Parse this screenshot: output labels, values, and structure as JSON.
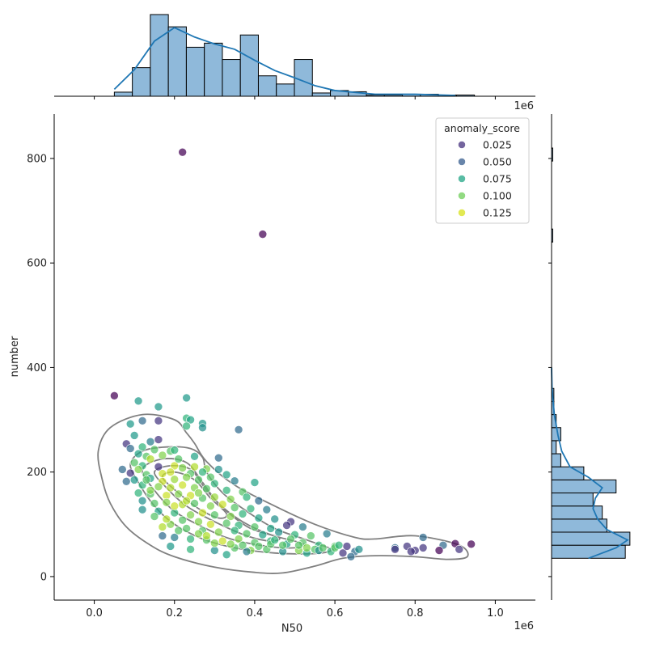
{
  "chart_data": {
    "type": "scatter",
    "xlabel": "N50",
    "ylabel": "number",
    "x_offset_label": "1e6",
    "top_offset_label": "1e6",
    "xlim": [
      -0.1,
      1.1
    ],
    "ylim": [
      -45,
      885
    ],
    "x_ticks": [
      0.0,
      0.2,
      0.4,
      0.6,
      0.8,
      1.0
    ],
    "x_tick_labels": [
      "0.0",
      "0.2",
      "0.4",
      "0.6",
      "0.8",
      "1.0"
    ],
    "y_ticks": [
      0,
      200,
      400,
      600,
      800
    ],
    "y_tick_labels": [
      "0",
      "200",
      "400",
      "600",
      "800"
    ],
    "legend": {
      "title": "anomaly_score",
      "placement": "upper right",
      "entries": [
        {
          "label": "0.025",
          "color": "#46327e"
        },
        {
          "label": "0.050",
          "color": "#365c8d"
        },
        {
          "label": "0.075",
          "color": "#21a585"
        },
        {
          "label": "0.100",
          "color": "#6ece58"
        },
        {
          "label": "0.125",
          "color": "#d8e219"
        }
      ]
    },
    "colors": {
      "histogram_fill": "#8fb9da",
      "kde_line": "#1f77b4",
      "contour": "#808080",
      "viridis_low": "#440154",
      "viridis_high": "#fde725"
    },
    "top_histogram": {
      "bin_start": 0.05,
      "bin_width": 0.0449,
      "counts": [
        1,
        7,
        20,
        17,
        12,
        13,
        9,
        15,
        5,
        3,
        9,
        0.8,
        1.4,
        1.1,
        0.3,
        0.3,
        0.5,
        0.5,
        0.3,
        0.3
      ],
      "kde": [
        [
          0.05,
          1.7
        ],
        [
          0.1,
          6.5
        ],
        [
          0.15,
          13.5
        ],
        [
          0.2,
          16.8
        ],
        [
          0.25,
          14.5
        ],
        [
          0.3,
          12.8
        ],
        [
          0.35,
          11.5
        ],
        [
          0.4,
          8.8
        ],
        [
          0.45,
          6.3
        ],
        [
          0.5,
          4.5
        ],
        [
          0.55,
          2.6
        ],
        [
          0.6,
          1.4
        ],
        [
          0.7,
          0.5
        ],
        [
          0.8,
          0.5
        ],
        [
          0.9,
          0.2
        ]
      ]
    },
    "right_histogram": {
      "bins": [
        [
          35,
          60,
          16
        ],
        [
          60,
          85,
          17
        ],
        [
          85,
          110,
          12
        ],
        [
          110,
          135,
          11
        ],
        [
          135,
          160,
          9
        ],
        [
          160,
          185,
          14
        ],
        [
          185,
          210,
          7
        ],
        [
          210,
          235,
          2
        ],
        [
          235,
          260,
          1
        ],
        [
          260,
          285,
          2
        ],
        [
          285,
          310,
          1
        ],
        [
          310,
          335,
          0.5
        ],
        [
          335,
          360,
          0.5
        ],
        [
          640,
          665,
          0.25
        ],
        [
          795,
          820,
          0.25
        ]
      ],
      "kde": [
        [
          35,
          8
        ],
        [
          55,
          14
        ],
        [
          70,
          16.5
        ],
        [
          90,
          12
        ],
        [
          110,
          10
        ],
        [
          130,
          9
        ],
        [
          150,
          9.5
        ],
        [
          170,
          11
        ],
        [
          190,
          8
        ],
        [
          210,
          4
        ],
        [
          240,
          2.2
        ],
        [
          270,
          1.4
        ],
        [
          310,
          0.6
        ],
        [
          360,
          0.1
        ],
        [
          400,
          0
        ]
      ]
    },
    "contours": [
      {
        "points": [
          [
            0.02,
            185
          ],
          [
            0.04,
            140
          ],
          [
            0.08,
            95
          ],
          [
            0.14,
            60
          ],
          [
            0.2,
            38
          ],
          [
            0.3,
            18
          ],
          [
            0.4,
            8
          ],
          [
            0.47,
            7
          ],
          [
            0.55,
            20
          ],
          [
            0.62,
            35
          ],
          [
            0.7,
            40
          ],
          [
            0.8,
            38
          ],
          [
            0.88,
            33
          ],
          [
            0.93,
            38
          ],
          [
            0.91,
            60
          ],
          [
            0.8,
            78
          ],
          [
            0.7,
            72
          ],
          [
            0.65,
            75
          ],
          [
            0.55,
            100
          ],
          [
            0.45,
            135
          ],
          [
            0.35,
            175
          ],
          [
            0.28,
            220
          ],
          [
            0.25,
            255
          ],
          [
            0.23,
            275
          ],
          [
            0.2,
            300
          ],
          [
            0.12,
            310
          ],
          [
            0.04,
            285
          ],
          [
            0.01,
            240
          ]
        ]
      },
      {
        "points": [
          [
            0.09,
            215
          ],
          [
            0.11,
            180
          ],
          [
            0.15,
            135
          ],
          [
            0.2,
            100
          ],
          [
            0.27,
            72
          ],
          [
            0.35,
            55
          ],
          [
            0.45,
            45
          ],
          [
            0.55,
            44
          ],
          [
            0.59,
            52
          ],
          [
            0.53,
            70
          ],
          [
            0.45,
            92
          ],
          [
            0.38,
            125
          ],
          [
            0.32,
            160
          ],
          [
            0.28,
            200
          ],
          [
            0.27,
            228
          ],
          [
            0.24,
            245
          ],
          [
            0.18,
            248
          ],
          [
            0.12,
            240
          ]
        ]
      },
      {
        "points": [
          [
            0.12,
            205
          ],
          [
            0.15,
            165
          ],
          [
            0.2,
            125
          ],
          [
            0.27,
            95
          ],
          [
            0.34,
            72
          ],
          [
            0.43,
            58
          ],
          [
            0.5,
            55
          ],
          [
            0.52,
            63
          ],
          [
            0.44,
            80
          ],
          [
            0.37,
            105
          ],
          [
            0.31,
            140
          ],
          [
            0.27,
            180
          ],
          [
            0.23,
            218
          ],
          [
            0.17,
            225
          ]
        ]
      },
      {
        "points": [
          [
            0.15,
            200
          ],
          [
            0.18,
            170
          ],
          [
            0.23,
            135
          ],
          [
            0.3,
            105
          ],
          [
            0.38,
            78
          ],
          [
            0.44,
            68
          ],
          [
            0.46,
            75
          ],
          [
            0.39,
            92
          ],
          [
            0.33,
            125
          ],
          [
            0.28,
            165
          ],
          [
            0.24,
            205
          ],
          [
            0.19,
            212
          ]
        ]
      },
      {
        "points": [
          [
            0.17,
            190
          ],
          [
            0.21,
            160
          ],
          [
            0.26,
            130
          ],
          [
            0.31,
            112
          ],
          [
            0.33,
            120
          ],
          [
            0.29,
            150
          ],
          [
            0.25,
            185
          ],
          [
            0.2,
            200
          ]
        ]
      }
    ],
    "points": [
      [
        0.22,
        812,
        0.005
      ],
      [
        0.42,
        655,
        0.005
      ],
      [
        0.05,
        346,
        0.005
      ],
      [
        0.23,
        342,
        0.075
      ],
      [
        0.11,
        336,
        0.075
      ],
      [
        0.16,
        325,
        0.075
      ],
      [
        0.16,
        298,
        0.025
      ],
      [
        0.12,
        298,
        0.05
      ],
      [
        0.09,
        292,
        0.075
      ],
      [
        0.23,
        303,
        0.09
      ],
      [
        0.24,
        300,
        0.08
      ],
      [
        0.27,
        293,
        0.075
      ],
      [
        0.27,
        285,
        0.07
      ],
      [
        0.36,
        281,
        0.05
      ],
      [
        0.23,
        288,
        0.09
      ],
      [
        0.1,
        270,
        0.075
      ],
      [
        0.14,
        258,
        0.06
      ],
      [
        0.16,
        262,
        0.025
      ],
      [
        0.08,
        254,
        0.025
      ],
      [
        0.09,
        245,
        0.05
      ],
      [
        0.12,
        248,
        0.09
      ],
      [
        0.15,
        243,
        0.1
      ],
      [
        0.19,
        240,
        0.1
      ],
      [
        0.2,
        242,
        0.09
      ],
      [
        0.11,
        235,
        0.08
      ],
      [
        0.13,
        230,
        0.1
      ],
      [
        0.14,
        225,
        0.12
      ],
      [
        0.17,
        232,
        0.11
      ],
      [
        0.31,
        227,
        0.05
      ],
      [
        0.1,
        218,
        0.1
      ],
      [
        0.12,
        212,
        0.09
      ],
      [
        0.16,
        210,
        0.025
      ],
      [
        0.2,
        212,
        0.125
      ],
      [
        0.22,
        208,
        0.11
      ],
      [
        0.25,
        210,
        0.12
      ],
      [
        0.28,
        206,
        0.11
      ],
      [
        0.07,
        205,
        0.05
      ],
      [
        0.09,
        198,
        0.025
      ],
      [
        0.13,
        195,
        0.1
      ],
      [
        0.17,
        197,
        0.125
      ],
      [
        0.19,
        200,
        0.125
      ],
      [
        0.24,
        197,
        0.1
      ],
      [
        0.27,
        200,
        0.09
      ],
      [
        0.31,
        205,
        0.07
      ],
      [
        0.08,
        182,
        0.05
      ],
      [
        0.1,
        185,
        0.075
      ],
      [
        0.14,
        188,
        0.08
      ],
      [
        0.17,
        182,
        0.125
      ],
      [
        0.2,
        186,
        0.115
      ],
      [
        0.23,
        190,
        0.11
      ],
      [
        0.26,
        185,
        0.1
      ],
      [
        0.3,
        178,
        0.09
      ],
      [
        0.35,
        183,
        0.06
      ],
      [
        0.4,
        180,
        0.08
      ],
      [
        0.12,
        175,
        0.09
      ],
      [
        0.16,
        172,
        0.11
      ],
      [
        0.19,
        170,
        0.12
      ],
      [
        0.22,
        175,
        0.125
      ],
      [
        0.25,
        170,
        0.11
      ],
      [
        0.28,
        168,
        0.1
      ],
      [
        0.33,
        165,
        0.09
      ],
      [
        0.37,
        162,
        0.1
      ],
      [
        0.11,
        160,
        0.09
      ],
      [
        0.14,
        158,
        0.1
      ],
      [
        0.18,
        155,
        0.125
      ],
      [
        0.21,
        158,
        0.11
      ],
      [
        0.24,
        155,
        0.125
      ],
      [
        0.27,
        150,
        0.1
      ],
      [
        0.3,
        152,
        0.115
      ],
      [
        0.34,
        148,
        0.11
      ],
      [
        0.38,
        152,
        0.09
      ],
      [
        0.41,
        145,
        0.05
      ],
      [
        0.12,
        145,
        0.07
      ],
      [
        0.15,
        140,
        0.1
      ],
      [
        0.18,
        142,
        0.11
      ],
      [
        0.22,
        138,
        0.12
      ],
      [
        0.25,
        140,
        0.1
      ],
      [
        0.29,
        135,
        0.11
      ],
      [
        0.32,
        138,
        0.125
      ],
      [
        0.35,
        132,
        0.1
      ],
      [
        0.39,
        130,
        0.09
      ],
      [
        0.43,
        128,
        0.06
      ],
      [
        0.12,
        128,
        0.07
      ],
      [
        0.16,
        125,
        0.08
      ],
      [
        0.2,
        122,
        0.09
      ],
      [
        0.24,
        118,
        0.11
      ],
      [
        0.27,
        122,
        0.125
      ],
      [
        0.3,
        118,
        0.1
      ],
      [
        0.34,
        115,
        0.11
      ],
      [
        0.37,
        120,
        0.09
      ],
      [
        0.41,
        112,
        0.08
      ],
      [
        0.45,
        110,
        0.07
      ],
      [
        0.49,
        105,
        0.025
      ],
      [
        0.22,
        108,
        0.1
      ],
      [
        0.26,
        105,
        0.11
      ],
      [
        0.29,
        100,
        0.125
      ],
      [
        0.33,
        102,
        0.1
      ],
      [
        0.36,
        98,
        0.09
      ],
      [
        0.4,
        95,
        0.1
      ],
      [
        0.44,
        92,
        0.08
      ],
      [
        0.48,
        98,
        0.025
      ],
      [
        0.52,
        95,
        0.06
      ],
      [
        0.17,
        95,
        0.12
      ],
      [
        0.23,
        92,
        0.1
      ],
      [
        0.27,
        88,
        0.1
      ],
      [
        0.31,
        85,
        0.11
      ],
      [
        0.35,
        88,
        0.09
      ],
      [
        0.38,
        82,
        0.1
      ],
      [
        0.42,
        80,
        0.08
      ],
      [
        0.46,
        85,
        0.07
      ],
      [
        0.5,
        80,
        0.09
      ],
      [
        0.54,
        78,
        0.1
      ],
      [
        0.58,
        82,
        0.06
      ],
      [
        0.17,
        78,
        0.05
      ],
      [
        0.2,
        75,
        0.06
      ],
      [
        0.24,
        72,
        0.09
      ],
      [
        0.28,
        70,
        0.1
      ],
      [
        0.32,
        68,
        0.125
      ],
      [
        0.36,
        72,
        0.11
      ],
      [
        0.4,
        65,
        0.1
      ],
      [
        0.44,
        68,
        0.09
      ],
      [
        0.48,
        62,
        0.08
      ],
      [
        0.52,
        65,
        0.1
      ],
      [
        0.56,
        60,
        0.09
      ],
      [
        0.6,
        58,
        0.1
      ],
      [
        0.19,
        58,
        0.075
      ],
      [
        0.24,
        52,
        0.09
      ],
      [
        0.3,
        50,
        0.07
      ],
      [
        0.35,
        55,
        0.1
      ],
      [
        0.39,
        50,
        0.11
      ],
      [
        0.43,
        52,
        0.1
      ],
      [
        0.47,
        48,
        0.07
      ],
      [
        0.51,
        50,
        0.11
      ],
      [
        0.55,
        52,
        0.1
      ],
      [
        0.59,
        48,
        0.09
      ],
      [
        0.62,
        45,
        0.025
      ],
      [
        0.65,
        48,
        0.05
      ],
      [
        0.64,
        38,
        0.05
      ],
      [
        0.33,
        42,
        0.08
      ],
      [
        0.38,
        48,
        0.06
      ],
      [
        0.53,
        45,
        0.08
      ],
      [
        0.56,
        50,
        0.07
      ],
      [
        0.66,
        52,
        0.07
      ],
      [
        0.6,
        55,
        0.1
      ],
      [
        0.63,
        58,
        0.025
      ],
      [
        0.75,
        55,
        0.05
      ],
      [
        0.78,
        58,
        0.025
      ],
      [
        0.8,
        50,
        0.025
      ],
      [
        0.82,
        55,
        0.025
      ],
      [
        0.82,
        75,
        0.05
      ],
      [
        0.87,
        60,
        0.05
      ],
      [
        0.86,
        50,
        0.005
      ],
      [
        0.9,
        63,
        0.005
      ],
      [
        0.91,
        52,
        0.025
      ],
      [
        0.94,
        62,
        0.005
      ],
      [
        0.75,
        52,
        0.025
      ],
      [
        0.79,
        48,
        0.025
      ],
      [
        0.47,
        60,
        0.1
      ],
      [
        0.51,
        60,
        0.1
      ],
      [
        0.44,
        62,
        0.1
      ],
      [
        0.41,
        58,
        0.1
      ],
      [
        0.37,
        60,
        0.1
      ],
      [
        0.34,
        62,
        0.11
      ],
      [
        0.3,
        64,
        0.11
      ],
      [
        0.28,
        78,
        0.12
      ],
      [
        0.26,
        82,
        0.11
      ],
      [
        0.21,
        88,
        0.1
      ],
      [
        0.19,
        100,
        0.11
      ],
      [
        0.18,
        110,
        0.12
      ],
      [
        0.15,
        115,
        0.1
      ],
      [
        0.2,
        135,
        0.125
      ],
      [
        0.23,
        145,
        0.12
      ],
      [
        0.26,
        160,
        0.11
      ],
      [
        0.29,
        190,
        0.1
      ],
      [
        0.33,
        195,
        0.08
      ],
      [
        0.14,
        165,
        0.11
      ],
      [
        0.13,
        185,
        0.1
      ],
      [
        0.11,
        205,
        0.11
      ],
      [
        0.21,
        225,
        0.1
      ],
      [
        0.25,
        230,
        0.08
      ],
      [
        0.45,
        70,
        0.09
      ],
      [
        0.49,
        72,
        0.1
      ],
      [
        0.53,
        55,
        0.11
      ],
      [
        0.57,
        55,
        0.1
      ],
      [
        0.61,
        60,
        0.09
      ]
    ]
  }
}
